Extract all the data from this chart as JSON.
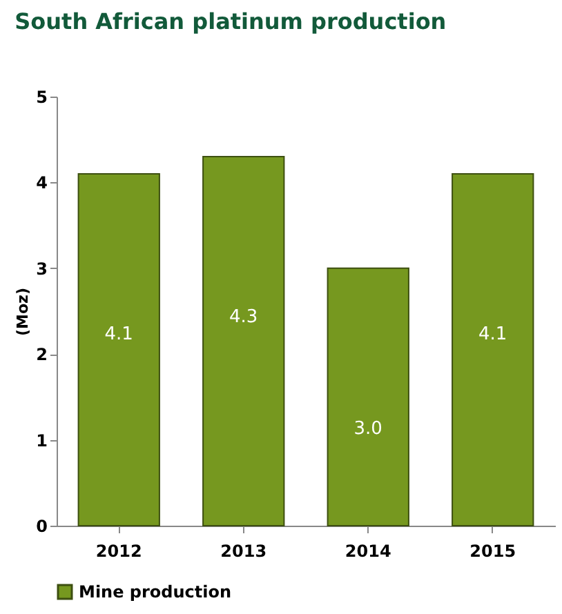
{
  "chart_data": {
    "type": "bar",
    "title": "South African platinum production",
    "ylabel": "(Moz)",
    "categories": [
      "2012",
      "2013",
      "2014",
      "2015"
    ],
    "series": [
      {
        "name": "Mine production",
        "color": "#76981f",
        "values": [
          4.1,
          4.3,
          3.0,
          4.1
        ],
        "value_labels": [
          "4.1",
          "4.3",
          "3.0",
          "4.1"
        ]
      }
    ],
    "ylim": [
      0,
      5
    ],
    "yticks": [
      0,
      1,
      2,
      3,
      4,
      5
    ],
    "grid": false,
    "legend": "bottom"
  }
}
